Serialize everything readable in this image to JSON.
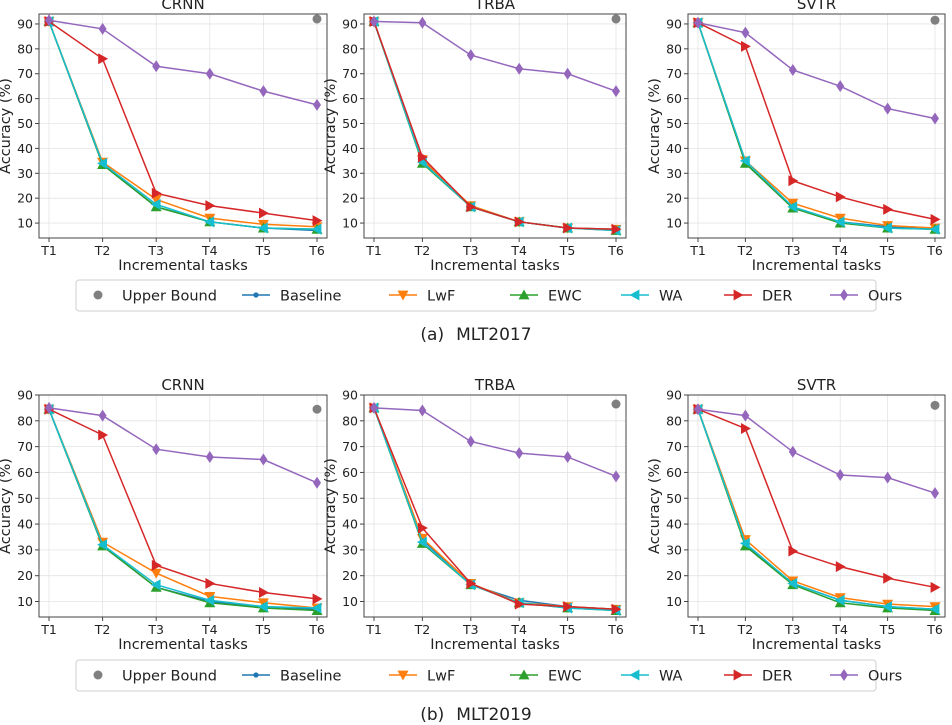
{
  "legend": {
    "upper_bound": "Upper Bound",
    "baseline": "Baseline",
    "lwf": "LwF",
    "ewc": "EWC",
    "wa": "WA",
    "der": "DER",
    "ours": "Ours"
  },
  "colors": {
    "upper_bound": "#808080",
    "baseline": "#1f77b4",
    "lwf": "#ff7f0e",
    "ewc": "#2ca02c",
    "wa": "#17becf",
    "der": "#d62728",
    "ours": "#9467bd"
  },
  "captions": [
    {
      "label": "(a)",
      "dataset": "MLT2017"
    },
    {
      "label": "(b)",
      "dataset": "MLT2019"
    }
  ],
  "chart_data": [
    {
      "type": "line",
      "title": "CRNN",
      "xlabel": "Incremental tasks",
      "ylabel": "Accuracy (%)",
      "categories": [
        "T1",
        "T2",
        "T3",
        "T4",
        "T5",
        "T6"
      ],
      "ylim": [
        4,
        94
      ],
      "yticks": [
        10,
        20,
        30,
        40,
        50,
        60,
        70,
        80,
        90
      ],
      "upper_bound": 92.0,
      "series": [
        {
          "key": "baseline",
          "values": [
            91.0,
            33.5,
            16.5,
            10.5,
            8.0,
            7.0
          ]
        },
        {
          "key": "lwf",
          "values": [
            91.0,
            34.5,
            19.5,
            12.0,
            9.5,
            8.5
          ]
        },
        {
          "key": "ewc",
          "values": [
            91.0,
            33.5,
            16.5,
            10.5,
            8.0,
            7.5
          ]
        },
        {
          "key": "wa",
          "values": [
            91.0,
            34.0,
            17.5,
            10.5,
            8.0,
            7.5
          ]
        },
        {
          "key": "der",
          "values": [
            91.0,
            76.0,
            22.0,
            17.0,
            14.0,
            11.0
          ]
        },
        {
          "key": "ours",
          "values": [
            91.5,
            88.0,
            73.0,
            70.0,
            63.0,
            57.5
          ]
        }
      ]
    },
    {
      "type": "line",
      "title": "TRBA",
      "xlabel": "Incremental tasks",
      "ylabel": "Accuracy (%)",
      "categories": [
        "T1",
        "T2",
        "T3",
        "T4",
        "T5",
        "T6"
      ],
      "ylim": [
        4,
        94
      ],
      "yticks": [
        10,
        20,
        30,
        40,
        50,
        60,
        70,
        80,
        90
      ],
      "upper_bound": 92.0,
      "series": [
        {
          "key": "baseline",
          "values": [
            91.0,
            35.0,
            16.5,
            10.5,
            8.0,
            7.5
          ]
        },
        {
          "key": "lwf",
          "values": [
            91.0,
            35.5,
            17.0,
            10.5,
            8.0,
            7.5
          ]
        },
        {
          "key": "ewc",
          "values": [
            91.0,
            34.0,
            16.5,
            10.5,
            8.0,
            7.0
          ]
        },
        {
          "key": "wa",
          "values": [
            91.0,
            34.5,
            16.5,
            10.5,
            8.0,
            7.0
          ]
        },
        {
          "key": "der",
          "values": [
            91.0,
            36.5,
            16.5,
            10.5,
            8.0,
            7.5
          ]
        },
        {
          "key": "ours",
          "values": [
            91.0,
            90.5,
            77.5,
            72.0,
            70.0,
            63.0
          ]
        }
      ]
    },
    {
      "type": "line",
      "title": "SVTR",
      "xlabel": "Incremental tasks",
      "ylabel": "Accuracy (%)",
      "categories": [
        "T1",
        "T2",
        "T3",
        "T4",
        "T5",
        "T6"
      ],
      "ylim": [
        4,
        94
      ],
      "yticks": [
        10,
        20,
        30,
        40,
        50,
        60,
        70,
        80,
        90
      ],
      "upper_bound": 91.5,
      "series": [
        {
          "key": "baseline",
          "values": [
            90.5,
            34.0,
            16.0,
            10.5,
            8.5,
            7.5
          ]
        },
        {
          "key": "lwf",
          "values": [
            90.5,
            35.0,
            18.0,
            12.0,
            9.0,
            8.0
          ]
        },
        {
          "key": "ewc",
          "values": [
            90.5,
            34.0,
            16.0,
            10.0,
            8.0,
            7.5
          ]
        },
        {
          "key": "wa",
          "values": [
            90.5,
            35.0,
            16.5,
            10.5,
            8.0,
            7.5
          ]
        },
        {
          "key": "der",
          "values": [
            90.5,
            81.0,
            27.0,
            20.5,
            15.5,
            11.5
          ]
        },
        {
          "key": "ours",
          "values": [
            90.5,
            86.5,
            71.5,
            65.0,
            56.0,
            52.0
          ]
        }
      ]
    },
    {
      "type": "line",
      "title": "CRNN",
      "xlabel": "Incremental tasks",
      "ylabel": "Accuracy (%)",
      "categories": [
        "T1",
        "T2",
        "T3",
        "T4",
        "T5",
        "T6"
      ],
      "ylim": [
        4,
        90
      ],
      "yticks": [
        10,
        20,
        30,
        40,
        50,
        60,
        70,
        80,
        90
      ],
      "upper_bound": 84.5,
      "series": [
        {
          "key": "baseline",
          "values": [
            84.5,
            31.5,
            15.5,
            10.0,
            8.0,
            7.0
          ]
        },
        {
          "key": "lwf",
          "values": [
            84.5,
            33.0,
            21.0,
            12.0,
            9.5,
            7.5
          ]
        },
        {
          "key": "ewc",
          "values": [
            84.5,
            31.5,
            15.5,
            9.5,
            7.5,
            6.5
          ]
        },
        {
          "key": "wa",
          "values": [
            84.5,
            32.0,
            16.5,
            10.5,
            8.0,
            7.5
          ]
        },
        {
          "key": "der",
          "values": [
            84.5,
            74.5,
            24.0,
            17.0,
            13.5,
            11.0
          ]
        },
        {
          "key": "ours",
          "values": [
            85.0,
            82.0,
            69.0,
            66.0,
            65.0,
            56.0
          ]
        }
      ]
    },
    {
      "type": "line",
      "title": "TRBA",
      "xlabel": "Incremental tasks",
      "ylabel": "Accuracy (%)",
      "categories": [
        "T1",
        "T2",
        "T3",
        "T4",
        "T5",
        "T6"
      ],
      "ylim": [
        4,
        90
      ],
      "yticks": [
        10,
        20,
        30,
        40,
        50,
        60,
        70,
        80,
        90
      ],
      "upper_bound": 86.5,
      "series": [
        {
          "key": "baseline",
          "values": [
            85.0,
            34.0,
            16.5,
            10.5,
            8.0,
            7.0
          ]
        },
        {
          "key": "lwf",
          "values": [
            85.0,
            34.5,
            17.0,
            9.5,
            8.0,
            7.0
          ]
        },
        {
          "key": "ewc",
          "values": [
            85.0,
            32.5,
            16.5,
            9.5,
            7.5,
            6.5
          ]
        },
        {
          "key": "wa",
          "values": [
            85.0,
            33.0,
            16.5,
            9.5,
            7.5,
            6.5
          ]
        },
        {
          "key": "der",
          "values": [
            85.0,
            38.5,
            17.0,
            9.0,
            8.0,
            7.0
          ]
        },
        {
          "key": "ours",
          "values": [
            85.0,
            84.0,
            72.0,
            67.5,
            66.0,
            58.5
          ]
        }
      ]
    },
    {
      "type": "line",
      "title": "SVTR",
      "xlabel": "Incremental tasks",
      "ylabel": "Accuracy (%)",
      "categories": [
        "T1",
        "T2",
        "T3",
        "T4",
        "T5",
        "T6"
      ],
      "ylim": [
        4,
        90
      ],
      "yticks": [
        10,
        20,
        30,
        40,
        50,
        60,
        70,
        80,
        90
      ],
      "upper_bound": 86.0,
      "series": [
        {
          "key": "baseline",
          "values": [
            84.5,
            32.0,
            17.0,
            10.5,
            8.0,
            7.0
          ]
        },
        {
          "key": "lwf",
          "values": [
            84.5,
            34.0,
            18.0,
            11.5,
            9.0,
            8.0
          ]
        },
        {
          "key": "ewc",
          "values": [
            84.5,
            31.5,
            16.5,
            9.5,
            7.5,
            6.5
          ]
        },
        {
          "key": "wa",
          "values": [
            84.5,
            32.5,
            17.0,
            10.5,
            8.0,
            7.0
          ]
        },
        {
          "key": "der",
          "values": [
            84.5,
            77.0,
            29.5,
            23.5,
            19.0,
            15.5
          ]
        },
        {
          "key": "ours",
          "values": [
            84.5,
            82.0,
            68.0,
            59.0,
            58.0,
            52.0
          ]
        }
      ]
    }
  ]
}
